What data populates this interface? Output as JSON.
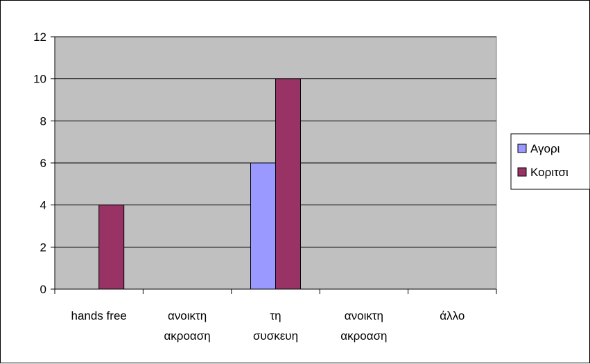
{
  "chart_data": {
    "type": "bar",
    "categories": [
      [
        "hands free"
      ],
      [
        "ανοικτη",
        "ακροαση"
      ],
      [
        "τη",
        "συσκευη"
      ],
      [
        "ανοικτη",
        "ακροαση"
      ],
      [
        "άλλο"
      ]
    ],
    "series": [
      {
        "name": "Αγορι",
        "color": "#9999ff",
        "values": [
          0,
          0,
          6,
          0,
          0
        ]
      },
      {
        "name": "Κοριτσι",
        "color": "#993366",
        "values": [
          4,
          0,
          10,
          0,
          0
        ]
      }
    ],
    "title": "",
    "xlabel": "",
    "ylabel": "",
    "ylim": [
      0,
      12
    ],
    "yticks": [
      0,
      2,
      4,
      6,
      8,
      10,
      12
    ],
    "grid": true,
    "plot_background": "#c0c0c0",
    "legend": "right"
  }
}
